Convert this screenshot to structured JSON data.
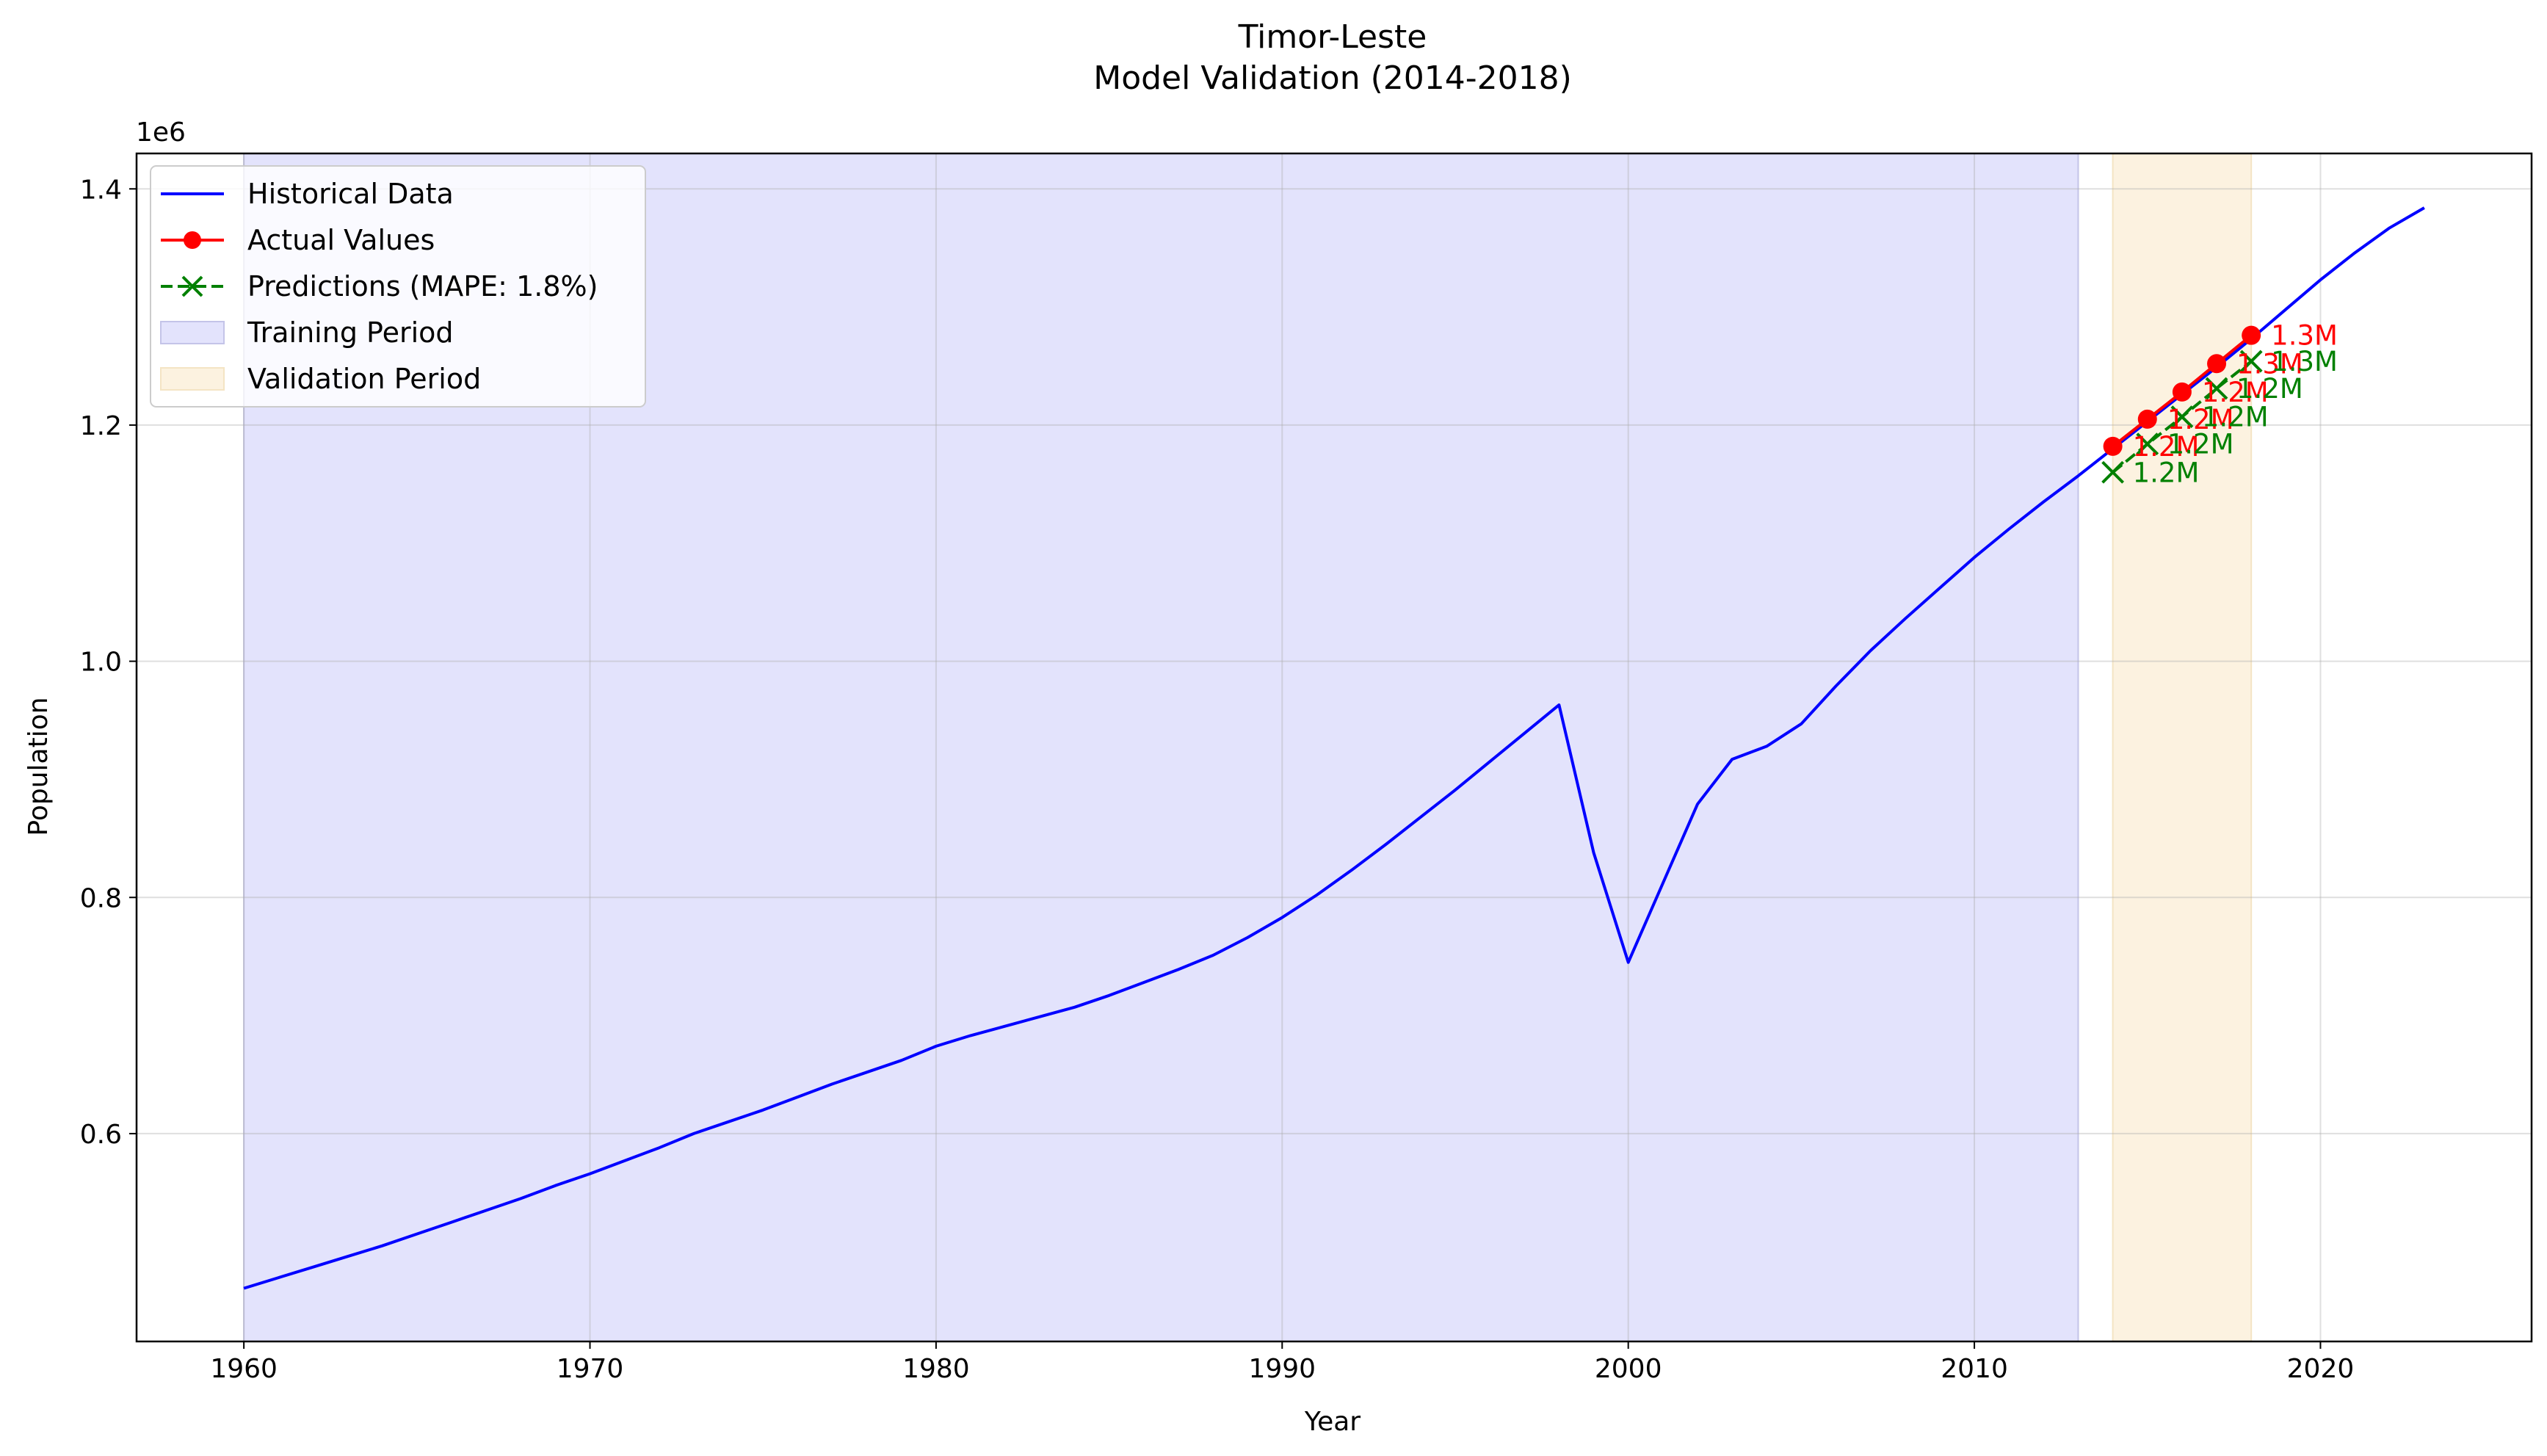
{
  "chart_data": {
    "type": "line",
    "title": "Timor-Leste",
    "subtitle": "Model Validation (2014-2018)",
    "xlabel": "Year",
    "ylabel": "Population",
    "y_offset_label": "1e6",
    "xlim": [
      1956.9,
      2026.1
    ],
    "ylim": [
      0.424,
      1.43
    ],
    "y_scale_multiplier": 1000000,
    "grid": true,
    "legend_position": "upper-left",
    "x_ticks": [
      1960,
      1970,
      1980,
      1990,
      2000,
      2010,
      2020
    ],
    "x_tick_labels": [
      "1960",
      "1970",
      "1980",
      "1990",
      "2000",
      "2010",
      "2020"
    ],
    "y_ticks": [
      0.6,
      0.8,
      1.0,
      1.2,
      1.4
    ],
    "y_tick_labels": [
      "0.6",
      "0.8",
      "1.0",
      "1.2",
      "1.4"
    ],
    "shaded_regions": [
      {
        "legend_label": "Training Period",
        "x_start": 1960,
        "x_end": 2013,
        "color": "#e3e3fc",
        "edge": "#c4c4e8"
      },
      {
        "legend_label": "Validation Period",
        "x_start": 2014,
        "x_end": 2018,
        "color": "#fcf2e0",
        "edge": "#f4e4c4"
      }
    ],
    "series": [
      {
        "name": "Historical Data",
        "color": "#0000ff",
        "style": "solid",
        "marker": "none",
        "x": [
          1960,
          1961,
          1962,
          1963,
          1964,
          1965,
          1966,
          1967,
          1968,
          1969,
          1970,
          1971,
          1972,
          1973,
          1974,
          1975,
          1976,
          1977,
          1978,
          1979,
          1980,
          1981,
          1982,
          1983,
          1984,
          1985,
          1986,
          1987,
          1988,
          1989,
          1990,
          1991,
          1992,
          1993,
          1994,
          1995,
          1996,
          1997,
          1998,
          1999,
          2000,
          2001,
          2002,
          2003,
          2004,
          2005,
          2006,
          2007,
          2008,
          2009,
          2010,
          2011,
          2012,
          2013,
          2014,
          2015,
          2016,
          2017,
          2018,
          2019,
          2020,
          2021,
          2022,
          2023
        ],
        "y": [
          0.469,
          0.478,
          0.487,
          0.496,
          0.505,
          0.515,
          0.525,
          0.535,
          0.545,
          0.556,
          0.566,
          0.577,
          0.588,
          0.6,
          0.61,
          0.62,
          0.631,
          0.642,
          0.652,
          0.662,
          0.674,
          0.683,
          0.691,
          0.699,
          0.707,
          0.717,
          0.728,
          0.739,
          0.751,
          0.766,
          0.783,
          0.802,
          0.823,
          0.845,
          0.868,
          0.891,
          0.915,
          0.939,
          0.963,
          0.838,
          0.745,
          0.812,
          0.879,
          0.917,
          0.928,
          0.947,
          0.979,
          1.009,
          1.036,
          1.062,
          1.088,
          1.112,
          1.135,
          1.157,
          1.18,
          1.203,
          1.226,
          1.249,
          1.273,
          1.298,
          1.323,
          1.346,
          1.367,
          1.384
        ]
      },
      {
        "name": "Actual Values",
        "color": "#ff0000",
        "style": "solid",
        "marker": "circle",
        "x": [
          2014,
          2015,
          2016,
          2017,
          2018
        ],
        "y": [
          1.182,
          1.205,
          1.228,
          1.252,
          1.276
        ],
        "point_labels": [
          "1.2M",
          "1.2M",
          "1.2M",
          "1.3M",
          "1.3M"
        ]
      },
      {
        "name": "Predictions (MAPE: 1.8%)",
        "color": "#008000",
        "style": "dashed",
        "marker": "x",
        "x": [
          2014,
          2015,
          2016,
          2017,
          2018
        ],
        "y": [
          1.16,
          1.184,
          1.207,
          1.231,
          1.254
        ],
        "point_labels": [
          "1.2M",
          "1.2M",
          "1.2M",
          "1.2M",
          "1.3M"
        ]
      }
    ]
  }
}
